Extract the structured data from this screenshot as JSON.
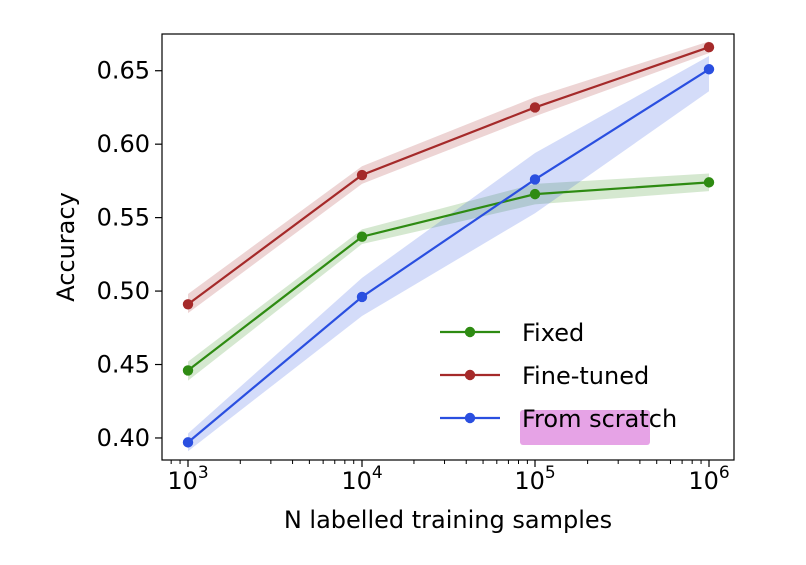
{
  "chart_data": {
    "type": "line",
    "xlabel": "N labelled training samples",
    "ylabel": "Accuracy",
    "x_scale": "log",
    "x": [
      1000,
      10000,
      100000,
      1000000
    ],
    "x_tick_labels": [
      {
        "base": "10",
        "exp": "3"
      },
      {
        "base": "10",
        "exp": "4"
      },
      {
        "base": "10",
        "exp": "5"
      },
      {
        "base": "10",
        "exp": "6"
      }
    ],
    "ylim": [
      0.385,
      0.675
    ],
    "y_ticks": [
      0.4,
      0.45,
      0.5,
      0.55,
      0.6,
      0.65
    ],
    "y_tick_labels": [
      "0.40",
      "0.45",
      "0.50",
      "0.55",
      "0.60",
      "0.65"
    ],
    "grid": false,
    "legend_position": "lower-right",
    "series": [
      {
        "name": "Fixed",
        "color": "#2e8b12",
        "values": [
          0.446,
          0.537,
          0.566,
          0.574
        ],
        "lower": [
          0.439,
          0.532,
          0.559,
          0.568
        ],
        "upper": [
          0.452,
          0.542,
          0.573,
          0.58
        ]
      },
      {
        "name": "Fine-tuned",
        "color": "#a52a2a",
        "values": [
          0.491,
          0.579,
          0.625,
          0.666
        ],
        "lower": [
          0.485,
          0.573,
          0.619,
          0.662
        ],
        "upper": [
          0.498,
          0.585,
          0.632,
          0.67
        ]
      },
      {
        "name": "From scratch",
        "color": "#2a4fe0",
        "values": [
          0.397,
          0.496,
          0.576,
          0.651
        ],
        "lower": [
          0.391,
          0.483,
          0.553,
          0.636
        ],
        "upper": [
          0.403,
          0.509,
          0.594,
          0.66
        ]
      }
    ],
    "highlight_color": "#e6a3e6"
  }
}
